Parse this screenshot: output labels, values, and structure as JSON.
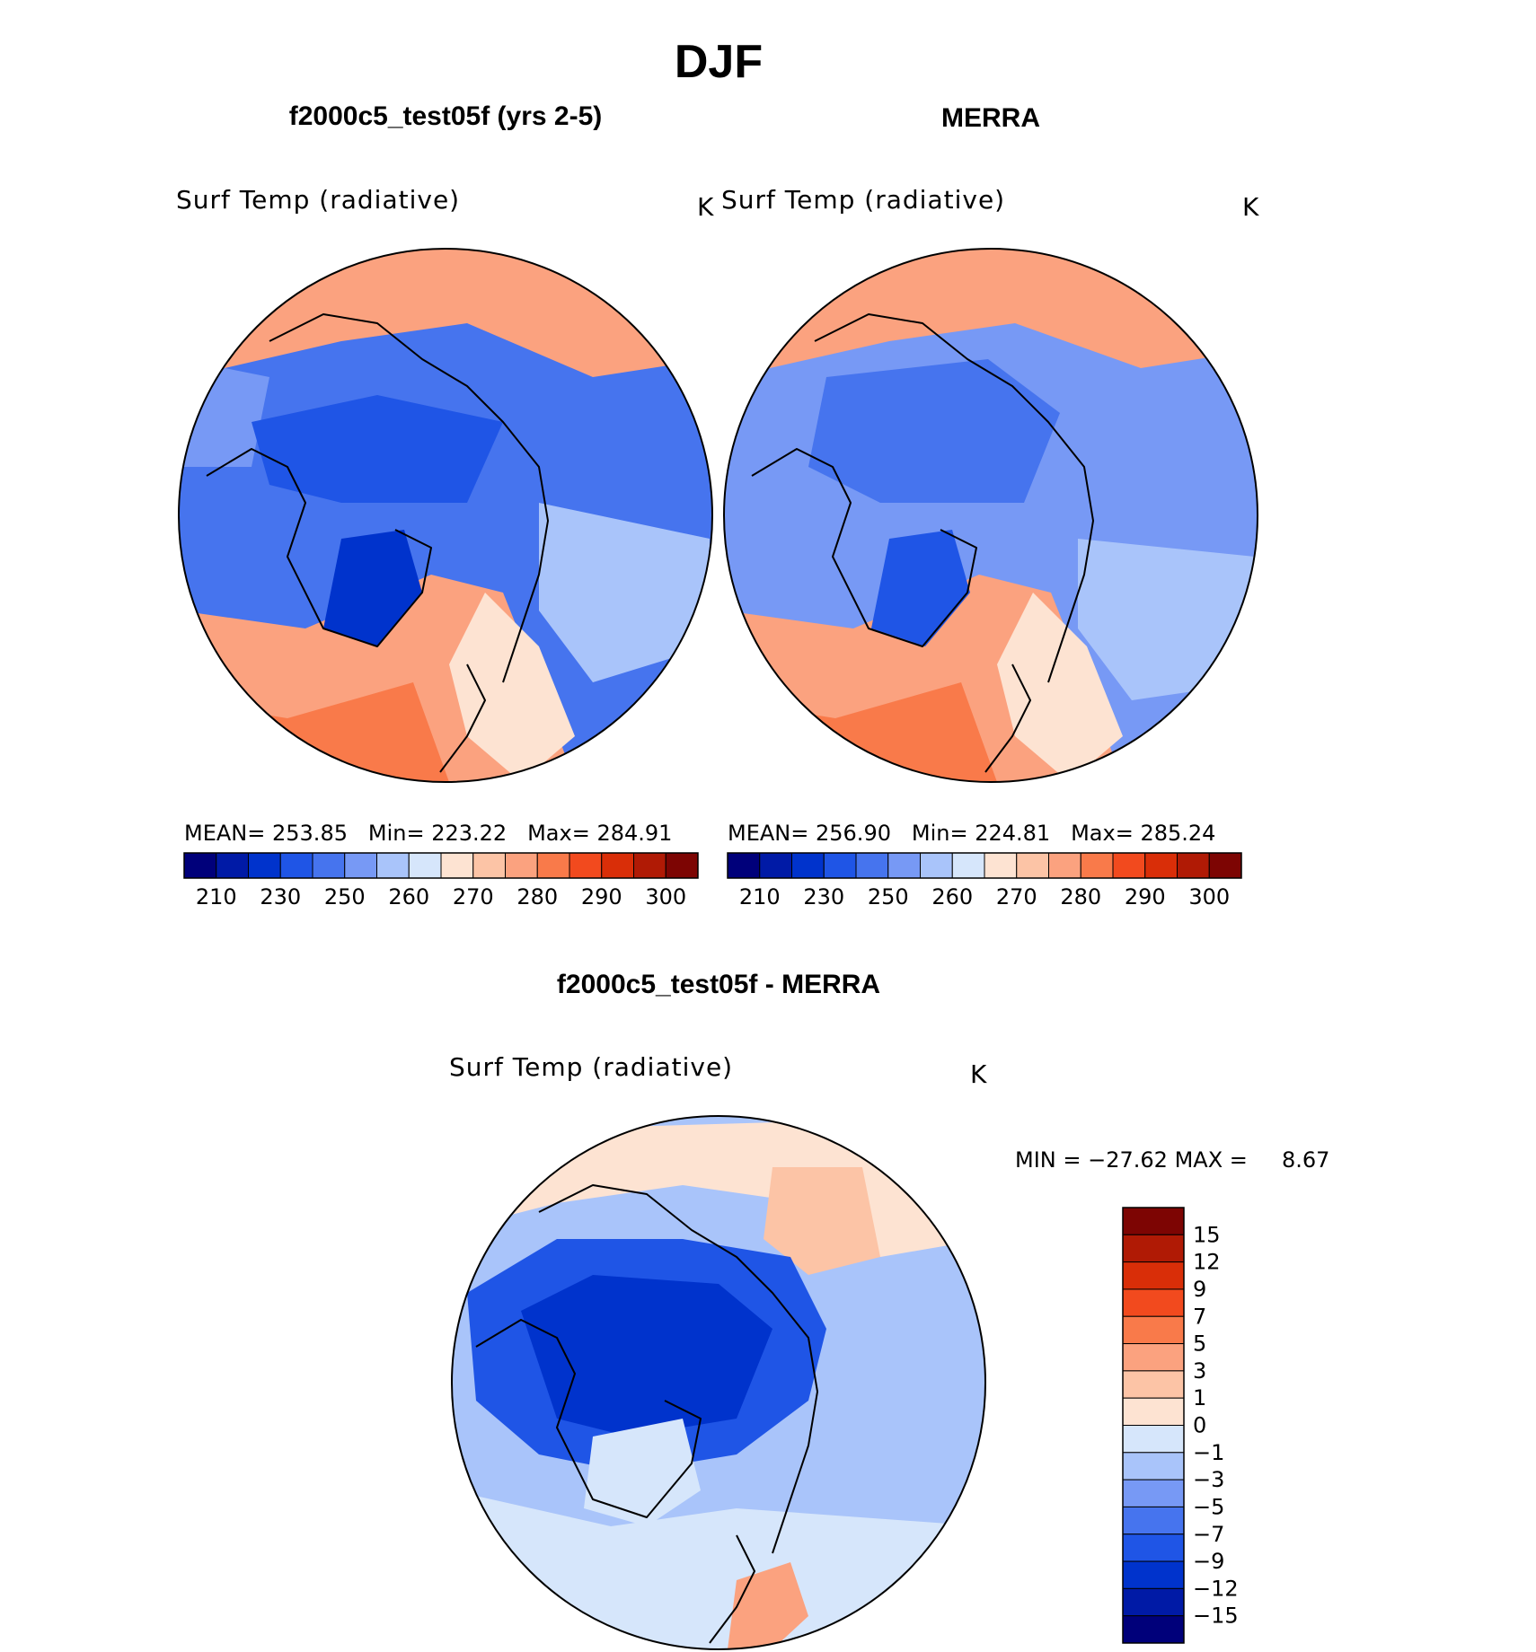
{
  "title": "DJF",
  "chart_data": [
    {
      "type": "heatmap",
      "panel_title": "f2000c5_test05f (yrs 2-5)",
      "variable": "Surf Temp (radiative)",
      "units": "K",
      "stats": {
        "mean_label": "MEAN=",
        "mean": "253.85",
        "min_label": "Min=",
        "min": "223.22",
        "max_label": "Max=",
        "max": "284.91"
      },
      "colorbar_ticks": [
        "210",
        "230",
        "250",
        "260",
        "270",
        "280",
        "290",
        "300"
      ]
    },
    {
      "type": "heatmap",
      "panel_title": "MERRA",
      "variable": "Surf Temp (radiative)",
      "units": "K",
      "stats": {
        "mean_label": "MEAN=",
        "mean": "256.90",
        "min_label": "Min=",
        "min": "224.81",
        "max_label": "Max=",
        "max": "285.24"
      },
      "colorbar_ticks": [
        "210",
        "230",
        "250",
        "260",
        "270",
        "280",
        "290",
        "300"
      ]
    },
    {
      "type": "heatmap",
      "panel_title": "f2000c5_test05f - MERRA",
      "variable": "Surf Temp (radiative)",
      "units": "K",
      "stats": {
        "min_label": "MIN = ",
        "min": "−27.62",
        "max_label": " MAX = ",
        "max": "8.67"
      },
      "colorbar_ticks": [
        "15",
        "12",
        "9",
        "7",
        "5",
        "3",
        "1",
        "0",
        "−1",
        "−3",
        "−5",
        "−7",
        "−9",
        "−12",
        "−15"
      ]
    }
  ],
  "abs_colors": [
    "#00007a",
    "#001aa6",
    "#0033cc",
    "#1f55e6",
    "#4674ee",
    "#7799f5",
    "#a9c4fa",
    "#d6e6fb",
    "#fde3d2",
    "#fcc4a6",
    "#fba27f",
    "#f97a4a",
    "#f24a1e",
    "#d92e08",
    "#b01a05",
    "#7d0503"
  ],
  "diff_colors": [
    "#00007a",
    "#001aa6",
    "#0033cc",
    "#1f55e6",
    "#4674ee",
    "#7799f5",
    "#a9c4fa",
    "#d6e6fb",
    "#fde3d2",
    "#fcc4a6",
    "#fba27f",
    "#f97a4a",
    "#f24a1e",
    "#d92e08",
    "#b01a05",
    "#7d0503"
  ]
}
